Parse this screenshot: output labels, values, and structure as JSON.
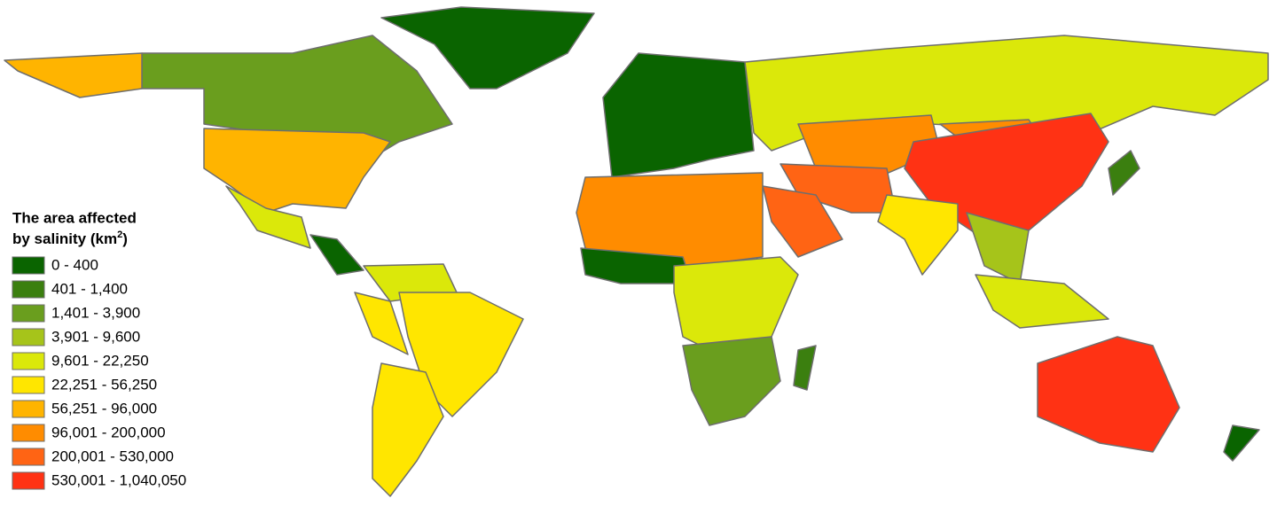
{
  "legend": {
    "title": {
      "line1": "The area affected",
      "line2": "by salinity (km",
      "superscript": "2",
      "line2_end": ")"
    },
    "items": [
      {
        "label": "0 - 400",
        "color": "#0a6400"
      },
      {
        "label": "401 - 1,400",
        "color": "#3b7f0f"
      },
      {
        "label": "1,401 - 3,900",
        "color": "#6a9e1e"
      },
      {
        "label": "3,901 - 9,600",
        "color": "#a6c41a"
      },
      {
        "label": "9,601 - 22,250",
        "color": "#dbe80a"
      },
      {
        "label": "22,251 - 56,250",
        "color": "#ffe600"
      },
      {
        "label": "56,251 - 96,000",
        "color": "#ffb400"
      },
      {
        "label": "96,001 - 200,000",
        "color": "#ff8c00"
      },
      {
        "label": "200,001 - 530,000",
        "color": "#ff6414"
      },
      {
        "label": "530,001 - 1,040,050",
        "color": "#ff3214"
      }
    ]
  }
}
